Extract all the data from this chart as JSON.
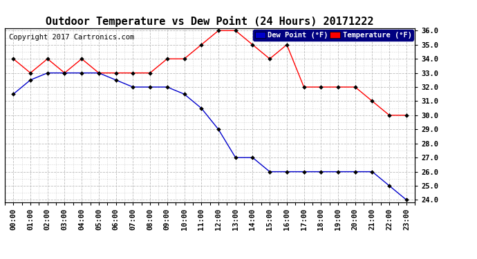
{
  "title": "Outdoor Temperature vs Dew Point (24 Hours) 20171222",
  "copyright": "Copyright 2017 Cartronics.com",
  "legend_dew": "Dew Point (°F)",
  "legend_temp": "Temperature (°F)",
  "hours": [
    "00:00",
    "01:00",
    "02:00",
    "03:00",
    "04:00",
    "05:00",
    "06:00",
    "07:00",
    "08:00",
    "09:00",
    "10:00",
    "11:00",
    "12:00",
    "13:00",
    "14:00",
    "15:00",
    "16:00",
    "17:00",
    "18:00",
    "19:00",
    "20:00",
    "21:00",
    "22:00",
    "23:00"
  ],
  "temperature": [
    34.0,
    33.0,
    34.0,
    33.0,
    34.0,
    33.0,
    33.0,
    33.0,
    33.0,
    34.0,
    34.0,
    35.0,
    36.0,
    36.0,
    35.0,
    34.0,
    35.0,
    32.0,
    32.0,
    32.0,
    32.0,
    31.0,
    30.0,
    30.0
  ],
  "dew_point": [
    31.5,
    32.5,
    33.0,
    33.0,
    33.0,
    33.0,
    32.5,
    32.0,
    32.0,
    32.0,
    31.5,
    30.5,
    29.0,
    27.0,
    27.0,
    26.0,
    26.0,
    26.0,
    26.0,
    26.0,
    26.0,
    26.0,
    25.0,
    24.0
  ],
  "temp_color": "#ff0000",
  "dew_color": "#0000cc",
  "bg_color": "#ffffff",
  "plot_bg_color": "#ffffff",
  "grid_color": "#bbbbbb",
  "ylim_min": 24.0,
  "ylim_max": 36.0,
  "ytick_step": 1.0,
  "title_fontsize": 11,
  "tick_fontsize": 7.5,
  "legend_fontsize": 7.5,
  "copyright_fontsize": 7.5
}
